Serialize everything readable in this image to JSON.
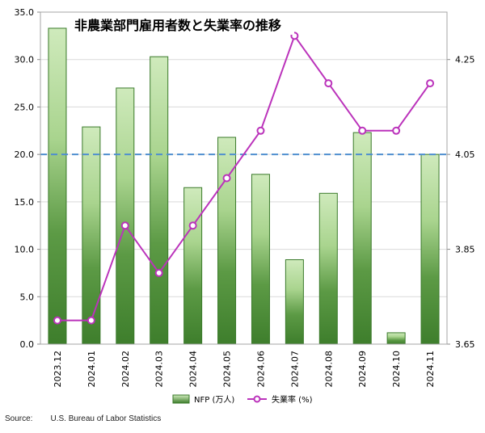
{
  "chart_data": {
    "type": "bar+line",
    "title": "非農業部門雇用者数と失業率の推移",
    "categories": [
      "2023.12",
      "2024.01",
      "2024.02",
      "2024.03",
      "2024.04",
      "2024.05",
      "2024.06",
      "2024.07",
      "2024.08",
      "2024.09",
      "2024.10",
      "2024.11"
    ],
    "series": [
      {
        "name": "NFP (万人)",
        "type": "bar",
        "axis": "left",
        "values": [
          33.3,
          22.9,
          27.0,
          30.3,
          16.5,
          21.8,
          17.9,
          8.9,
          15.9,
          22.3,
          1.2,
          20.0
        ]
      },
      {
        "name": "失業率 (%)",
        "type": "line",
        "axis": "right",
        "values": [
          3.7,
          3.7,
          3.9,
          3.8,
          3.9,
          4.0,
          4.1,
          4.3,
          4.2,
          4.1,
          4.1,
          4.2
        ]
      }
    ],
    "reference_line": {
      "axis": "right",
      "value": 4.05,
      "style": "dashed",
      "color": "#4f8fcf"
    },
    "y_left": {
      "min": 0,
      "max": 35,
      "ticks": [
        "0.0",
        "5.0",
        "10.0",
        "15.0",
        "20.0",
        "25.0",
        "30.0",
        "35.0"
      ]
    },
    "y_right": {
      "min": 3.65,
      "max": 4.35,
      "ticks": [
        "3.65",
        "3.85",
        "4.05",
        "4.25"
      ]
    },
    "legend": {
      "position": "bottom",
      "items": [
        "NFP (万人)",
        "失業率 (%)"
      ]
    },
    "grid": true,
    "colors": {
      "bar_light": "#c8e6b4",
      "bar_dark": "#3e7e2c",
      "bar_edge": "#3a7a2a",
      "line": "#bb33bb",
      "grid": "#d9d9d9"
    }
  },
  "source": {
    "label": "Source:",
    "text": "U.S. Bureau of Labor Statistics"
  }
}
